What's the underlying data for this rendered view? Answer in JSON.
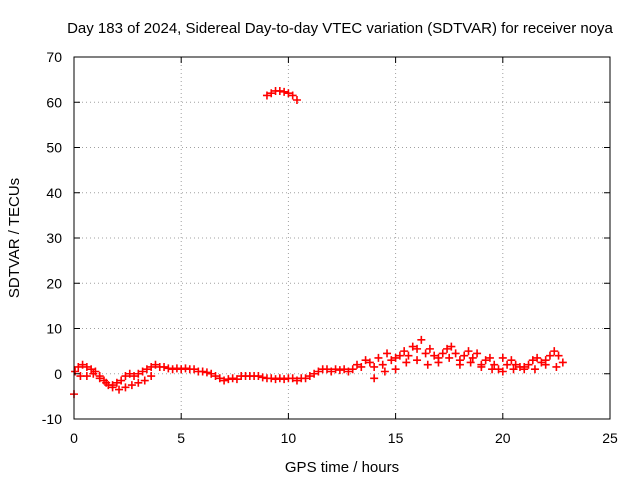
{
  "chart_data": {
    "type": "scatter",
    "title": "Day 183 of 2024, Sidereal Day-to-day VTEC variation (SDTVAR) for receiver noya",
    "xlabel": "GPS time / hours",
    "ylabel": "SDTVAR / TECUs",
    "xlim": [
      0,
      25
    ],
    "ylim": [
      -10,
      70
    ],
    "x_ticks": [
      0,
      5,
      10,
      15,
      20,
      25
    ],
    "y_ticks": [
      -10,
      0,
      10,
      20,
      30,
      40,
      50,
      60,
      70
    ],
    "x_tick_labels": [
      "0",
      "5",
      "10",
      "15",
      "20",
      "25"
    ],
    "y_tick_labels": [
      "-10",
      "0",
      "10",
      "20",
      "30",
      "40",
      "50",
      "60",
      "70"
    ],
    "grid": true,
    "series_color": "#ff0000",
    "marker": "plus",
    "series": [
      {
        "name": "SDTVAR",
        "x": [
          0.0,
          0.2,
          0.4,
          0.6,
          0.8,
          1.0,
          1.2,
          1.4,
          1.6,
          1.8,
          2.0,
          2.2,
          2.4,
          2.6,
          2.8,
          3.0,
          3.2,
          3.4,
          3.6,
          3.8,
          4.0,
          4.2,
          4.4,
          4.6,
          4.8,
          5.0,
          5.2,
          5.4,
          5.6,
          5.8,
          6.0,
          6.2,
          6.4,
          6.6,
          6.8,
          7.0,
          7.2,
          7.4,
          7.6,
          7.8,
          8.0,
          8.2,
          8.4,
          8.6,
          8.8,
          9.0,
          9.2,
          9.4,
          9.6,
          9.8,
          10.0,
          10.2,
          10.4,
          10.6,
          10.8,
          11.0,
          11.2,
          11.4,
          11.6,
          11.8,
          12.0,
          12.2,
          12.4,
          12.6,
          12.8,
          13.0,
          13.2,
          13.4,
          13.6,
          13.8,
          14.0,
          14.2,
          14.4,
          14.6,
          14.8,
          15.0,
          15.2,
          15.4,
          15.6,
          15.8,
          16.0,
          16.2,
          16.4,
          16.6,
          16.8,
          17.0,
          17.2,
          17.4,
          17.6,
          17.8,
          18.0,
          18.2,
          18.4,
          18.6,
          18.8,
          19.0,
          19.2,
          19.4,
          19.6,
          19.8,
          20.0,
          20.2,
          20.4,
          20.6,
          20.8,
          21.0,
          21.2,
          21.4,
          21.6,
          21.8,
          22.0,
          22.2,
          22.4,
          22.6,
          22.8,
          0.05,
          0.3,
          0.6,
          0.9,
          1.2,
          1.5,
          1.8,
          2.1,
          2.4,
          2.7,
          3.0,
          3.3,
          3.6,
          9.0,
          9.2,
          9.4,
          9.6,
          9.8,
          10.0,
          10.2,
          10.4,
          14.0,
          14.5,
          15.0,
          15.5,
          16.0,
          16.5,
          17.0,
          17.5,
          18.0,
          18.5,
          19.0,
          19.5,
          20.0,
          20.5,
          21.0,
          21.5,
          22.0,
          22.5
        ],
        "y": [
          -4.5,
          1.5,
          2.0,
          1.5,
          1.0,
          0.5,
          -0.5,
          -1.5,
          -2.5,
          -2.5,
          -2.0,
          -1.5,
          -0.5,
          0.0,
          -0.5,
          0.0,
          0.5,
          1.0,
          1.5,
          2.0,
          1.5,
          1.5,
          1.2,
          1.0,
          1.2,
          1.0,
          1.2,
          1.0,
          1.0,
          0.5,
          0.5,
          0.3,
          0.0,
          -0.5,
          -1.0,
          -1.5,
          -1.2,
          -1.0,
          -1.2,
          -0.5,
          -0.5,
          -0.5,
          -0.5,
          -0.5,
          -0.8,
          -1.0,
          -1.0,
          -1.2,
          -1.0,
          -1.2,
          -1.0,
          -1.0,
          -1.5,
          -1.0,
          -1.0,
          -0.5,
          0.0,
          0.5,
          1.0,
          1.0,
          0.5,
          1.0,
          0.8,
          1.0,
          0.5,
          1.0,
          2.0,
          1.5,
          3.0,
          2.5,
          1.5,
          3.5,
          2.0,
          4.5,
          3.0,
          3.5,
          4.0,
          5.0,
          4.0,
          6.0,
          5.5,
          7.5,
          4.5,
          5.5,
          4.0,
          3.5,
          4.5,
          5.5,
          6.0,
          4.5,
          3.0,
          4.0,
          5.0,
          3.5,
          4.5,
          2.0,
          3.0,
          3.5,
          2.0,
          1.0,
          3.5,
          2.0,
          3.0,
          2.0,
          1.5,
          1.0,
          2.0,
          3.0,
          3.5,
          2.5,
          3.0,
          4.0,
          5.0,
          4.0,
          2.5,
          0.5,
          -0.5,
          -0.5,
          0.0,
          -1.0,
          -2.0,
          -3.0,
          -3.5,
          -3.0,
          -2.5,
          -2.0,
          -1.5,
          -0.5,
          61.5,
          62.0,
          62.5,
          62.5,
          62.3,
          62.0,
          61.5,
          60.5,
          -1.0,
          0.5,
          1.0,
          2.5,
          3.0,
          2.0,
          2.5,
          3.5,
          2.0,
          2.5,
          1.5,
          1.0,
          0.5,
          1.0,
          1.5,
          1.0,
          2.0,
          1.5
        ]
      }
    ]
  }
}
